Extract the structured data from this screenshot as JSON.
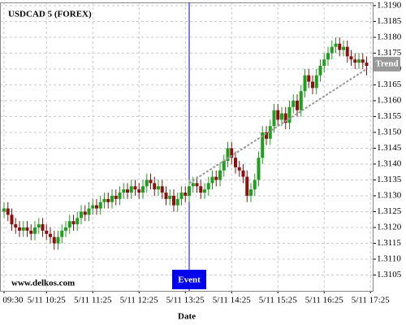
{
  "chart_data": {
    "type": "candlestick",
    "title": "USDCAD 5 (FOREX)",
    "x_label": "Date",
    "watermark": "www.delkos.com",
    "up_color": "#1f9e1f",
    "down_color": "#8b1010",
    "grid": true,
    "xlim": [
      -1,
      96
    ],
    "xticks": [
      {
        "value": 0,
        "label": "5/11 09:30"
      },
      {
        "value": 11,
        "label": "5/11 10:25"
      },
      {
        "value": 23,
        "label": "5/11 11:25"
      },
      {
        "value": 35,
        "label": "5/11 12:25"
      },
      {
        "value": 47,
        "label": "5/11 13:25"
      },
      {
        "value": 59,
        "label": "5/11 14:25"
      },
      {
        "value": 71,
        "label": "5/11 15:25"
      },
      {
        "value": 83,
        "label": "5/11 16:25"
      },
      {
        "value": 95,
        "label": "5/11 17:25"
      }
    ],
    "ylim": [
      1.31,
      1.3191
    ],
    "yticks": [
      1.3105,
      {
        "value": 1.311,
        "label": "1.3110"
      },
      1.3115,
      {
        "value": 1.312,
        "label": "1.3120"
      },
      1.3125,
      {
        "value": 1.313,
        "label": "1.3130"
      },
      1.3135,
      {
        "value": 1.314,
        "label": "1.3140"
      },
      1.3145,
      {
        "value": 1.315,
        "label": "1.3150"
      },
      1.3155,
      {
        "value": 1.316,
        "label": "1.3160"
      },
      1.3165,
      {
        "value": 1.317,
        "label": "1.3170"
      },
      1.3175,
      {
        "value": 1.318,
        "label": "1.3180"
      },
      1.3185,
      {
        "value": 1.319,
        "label": "1.3190"
      }
    ],
    "open": [
      1.3125,
      1.3126,
      1.3124,
      1.3121,
      1.312,
      1.3119,
      1.312,
      1.3119,
      1.3118,
      1.312,
      1.3121,
      1.3119,
      1.3118,
      1.3117,
      1.3115,
      1.3117,
      1.3119,
      1.312,
      1.3122,
      1.3121,
      1.3123,
      1.3125,
      1.3124,
      1.3126,
      1.3127,
      1.3126,
      1.3128,
      1.3129,
      1.3128,
      1.313,
      1.3129,
      1.3131,
      1.3132,
      1.3131,
      1.3133,
      1.3132,
      1.3131,
      1.3133,
      1.3135,
      1.3134,
      1.3132,
      1.3133,
      1.3131,
      1.3129,
      1.313,
      1.3127,
      1.3129,
      1.3131,
      1.313,
      1.3133,
      1.3134,
      1.3133,
      1.3131,
      1.3132,
      1.3134,
      1.3136,
      1.3135,
      1.3138,
      1.3141,
      1.3145,
      1.3142,
      1.3139,
      1.3138,
      1.3136,
      1.313,
      1.3132,
      1.3135,
      1.3142,
      1.315,
      1.3148,
      1.3152,
      1.3157,
      1.3154,
      1.3156,
      1.3153,
      1.3158,
      1.316,
      1.3157,
      1.3163,
      1.3168,
      1.3166,
      1.3164,
      1.3168,
      1.3171,
      1.3173,
      1.3175,
      1.3177,
      1.3178,
      1.3176,
      1.3177,
      1.3174,
      1.3173,
      1.3172,
      1.3173,
      1.3172
    ],
    "high": [
      1.3128,
      1.3128,
      1.3126,
      1.3123,
      1.3122,
      1.3122,
      1.3122,
      1.3121,
      1.3122,
      1.3123,
      1.3123,
      1.3121,
      1.312,
      1.3119,
      1.3119,
      1.3121,
      1.3122,
      1.3124,
      1.3124,
      1.3125,
      1.3127,
      1.3127,
      1.3128,
      1.3129,
      1.3129,
      1.313,
      1.3131,
      1.3131,
      1.3132,
      1.3132,
      1.3133,
      1.3134,
      1.3134,
      1.3135,
      1.3135,
      1.3134,
      1.3135,
      1.3137,
      1.3137,
      1.3136,
      1.3135,
      1.3135,
      1.3133,
      1.3132,
      1.3132,
      1.3131,
      1.3133,
      1.3133,
      1.3135,
      1.3136,
      1.3136,
      1.3135,
      1.3134,
      1.3136,
      1.3138,
      1.3138,
      1.314,
      1.3143,
      1.3147,
      1.3147,
      1.3144,
      1.3141,
      1.314,
      1.3138,
      1.3134,
      1.3137,
      1.3144,
      1.3152,
      1.3152,
      1.3154,
      1.3159,
      1.3159,
      1.3158,
      1.3158,
      1.316,
      1.3162,
      1.3162,
      1.3165,
      1.317,
      1.317,
      1.3168,
      1.317,
      1.3173,
      1.3175,
      1.3177,
      1.3179,
      1.318,
      1.318,
      1.3179,
      1.3179,
      1.3176,
      1.3175,
      1.3175,
      1.3175,
      1.3174
    ],
    "low": [
      1.3123,
      1.3122,
      1.3119,
      1.3118,
      1.3117,
      1.3117,
      1.3117,
      1.3116,
      1.3116,
      1.3118,
      1.3117,
      1.3116,
      1.3115,
      1.3113,
      1.3113,
      1.3115,
      1.3117,
      1.3118,
      1.3119,
      1.3119,
      1.3121,
      1.3122,
      1.3122,
      1.3124,
      1.3124,
      1.3124,
      1.3126,
      1.3126,
      1.3126,
      1.3127,
      1.3127,
      1.3129,
      1.3129,
      1.3129,
      1.313,
      1.3129,
      1.3129,
      1.3131,
      1.3132,
      1.313,
      1.313,
      1.3129,
      1.3127,
      1.3127,
      1.3125,
      1.3125,
      1.3127,
      1.3128,
      1.3128,
      1.3131,
      1.3131,
      1.3129,
      1.3129,
      1.313,
      1.3132,
      1.3133,
      1.3133,
      1.3136,
      1.3139,
      1.314,
      1.3137,
      1.3136,
      1.3134,
      1.3128,
      1.3128,
      1.313,
      1.3133,
      1.314,
      1.3146,
      1.3146,
      1.315,
      1.3152,
      1.3152,
      1.3151,
      1.3151,
      1.3156,
      1.3155,
      1.3155,
      1.3161,
      1.3164,
      1.3162,
      1.3162,
      1.3166,
      1.3169,
      1.3171,
      1.3173,
      1.3175,
      1.3174,
      1.3174,
      1.3172,
      1.3171,
      1.317,
      1.317,
      1.317,
      1.3168
    ],
    "close": [
      1.3126,
      1.3124,
      1.3121,
      1.312,
      1.3119,
      1.312,
      1.3119,
      1.3118,
      1.312,
      1.3121,
      1.3119,
      1.3118,
      1.3117,
      1.3115,
      1.3117,
      1.3119,
      1.312,
      1.3122,
      1.3121,
      1.3123,
      1.3125,
      1.3124,
      1.3126,
      1.3127,
      1.3126,
      1.3128,
      1.3129,
      1.3128,
      1.313,
      1.3129,
      1.3131,
      1.3132,
      1.3131,
      1.3133,
      1.3132,
      1.3131,
      1.3133,
      1.3135,
      1.3134,
      1.3132,
      1.3133,
      1.3131,
      1.3129,
      1.313,
      1.3127,
      1.3129,
      1.3131,
      1.313,
      1.3133,
      1.3134,
      1.3133,
      1.3131,
      1.3132,
      1.3134,
      1.3136,
      1.3135,
      1.3138,
      1.3141,
      1.3145,
      1.3142,
      1.3139,
      1.3138,
      1.3136,
      1.313,
      1.3132,
      1.3135,
      1.3142,
      1.315,
      1.3148,
      1.3152,
      1.3157,
      1.3154,
      1.3156,
      1.3153,
      1.3158,
      1.316,
      1.3157,
      1.3163,
      1.3168,
      1.3166,
      1.3164,
      1.3168,
      1.3171,
      1.3173,
      1.3175,
      1.3177,
      1.3178,
      1.3176,
      1.3177,
      1.3174,
      1.3173,
      1.3172,
      1.3173,
      1.3172,
      1.3171
    ],
    "event": {
      "x": 48,
      "label": "Event",
      "color": "#0000ee"
    },
    "trend": {
      "label": "Trend",
      "x": [
        48,
        94
      ],
      "y": [
        1.3134,
        1.317
      ],
      "color": "#999999"
    }
  }
}
